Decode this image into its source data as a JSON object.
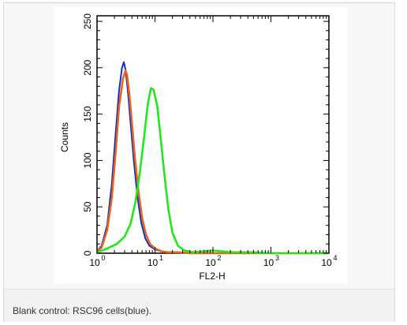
{
  "caption": "Blank control: RSC96 cells(blue).",
  "chart_data": {
    "type": "line",
    "xscale": "log",
    "xlim": [
      1,
      10000
    ],
    "ylim": [
      0,
      256
    ],
    "xlabel": "FL2-H",
    "ylabel": "Counts",
    "xticks": [
      {
        "base": "10",
        "exp": "0"
      },
      {
        "base": "10",
        "exp": "1"
      },
      {
        "base": "10",
        "exp": "2"
      },
      {
        "base": "10",
        "exp": "3"
      },
      {
        "base": "10",
        "exp": "4"
      }
    ],
    "yticks": [
      "0",
      "50",
      "100",
      "150",
      "200",
      "250"
    ],
    "grid": false,
    "series": [
      {
        "color": "#0a2fc8",
        "x": [
          1.0,
          1.2,
          1.5,
          1.8,
          2.1,
          2.4,
          2.7,
          2.9,
          3.1,
          3.4,
          3.8,
          4.3,
          5.0,
          5.8,
          6.8,
          8.0,
          10,
          13,
          17,
          25,
          40,
          100,
          1000,
          9500
        ],
        "y": [
          2,
          8,
          30,
          75,
          130,
          175,
          200,
          206,
          198,
          175,
          140,
          100,
          60,
          33,
          16,
          8,
          4,
          2,
          1,
          1,
          0,
          0,
          0,
          0
        ]
      },
      {
        "color": "#e8641a",
        "x": [
          1.0,
          1.2,
          1.5,
          1.8,
          2.1,
          2.4,
          2.8,
          3.1,
          3.3,
          3.6,
          4.0,
          4.5,
          5.2,
          6.0,
          7.0,
          8.2,
          10,
          13,
          17,
          25,
          40,
          100,
          1000,
          9500
        ],
        "y": [
          2,
          6,
          25,
          60,
          110,
          158,
          188,
          197,
          192,
          172,
          140,
          103,
          66,
          38,
          20,
          10,
          5,
          2,
          1,
          1,
          0,
          0,
          0,
          0
        ]
      },
      {
        "color": "#22e61e",
        "x": [
          1.0,
          1.5,
          2.2,
          3.0,
          3.8,
          4.6,
          5.5,
          6.5,
          7.5,
          8.5,
          9.5,
          11,
          12.5,
          14.5,
          17,
          20,
          25,
          32,
          45,
          70,
          100,
          140,
          200,
          400,
          1000,
          9500
        ],
        "y": [
          1,
          5,
          10,
          18,
          32,
          55,
          88,
          125,
          160,
          178,
          176,
          158,
          125,
          85,
          48,
          22,
          8,
          3,
          1,
          2,
          3,
          2,
          1,
          1,
          0,
          0
        ]
      }
    ]
  }
}
